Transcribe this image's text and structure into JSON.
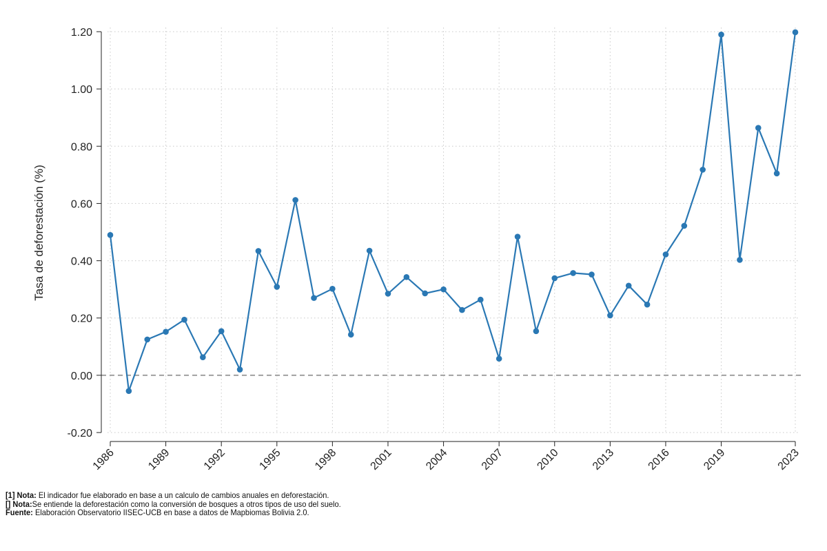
{
  "chart_data": {
    "type": "line",
    "ylabel": "Tasa de deforestación (%)",
    "xlabel": "",
    "title": "",
    "ylim": [
      -0.2,
      1.2
    ],
    "xlim": [
      1986,
      2023
    ],
    "y_ticks": [
      -0.2,
      0.0,
      0.2,
      0.4,
      0.6,
      0.8,
      1.0,
      1.2
    ],
    "y_tick_labels": [
      "-0.20",
      "0.00",
      "0.20",
      "0.40",
      "0.60",
      "0.80",
      "1.00",
      "1.20"
    ],
    "x_ticks": [
      1986,
      1989,
      1992,
      1995,
      1998,
      2001,
      2004,
      2007,
      2010,
      2013,
      2016,
      2019,
      2023
    ],
    "x_tick_labels": [
      "1986",
      "1989",
      "1992",
      "1995",
      "1998",
      "2001",
      "2004",
      "2007",
      "2010",
      "2013",
      "2016",
      "2019",
      "2023"
    ],
    "grid": true,
    "reference_line": 0.0,
    "color": "#2a78b4",
    "x": [
      1986,
      1987,
      1988,
      1989,
      1990,
      1991,
      1992,
      1993,
      1994,
      1995,
      1996,
      1997,
      1998,
      1999,
      2000,
      2001,
      2002,
      2003,
      2004,
      2005,
      2006,
      2007,
      2008,
      2009,
      2010,
      2011,
      2012,
      2013,
      2014,
      2015,
      2016,
      2017,
      2018,
      2019,
      2020,
      2021,
      2022,
      2023
    ],
    "values": [
      0.49,
      -0.055,
      0.125,
      0.152,
      0.194,
      0.063,
      0.154,
      0.02,
      0.434,
      0.309,
      0.612,
      0.27,
      0.302,
      0.142,
      0.435,
      0.285,
      0.343,
      0.286,
      0.3,
      0.228,
      0.264,
      0.058,
      0.484,
      0.154,
      0.339,
      0.357,
      0.352,
      0.209,
      0.313,
      0.247,
      0.422,
      0.522,
      0.718,
      1.19,
      0.403,
      0.864,
      0.705,
      1.198
    ]
  },
  "notes": {
    "note1_label": "[1] Nota:",
    "note1_text": " El indicador fue elaborado en base a un calculo de cambios anuales en deforestación.",
    "note2_label": "[] Nota:",
    "note2_text": "Se entiende la deforestación como la conversión de bosques a otros tipos de uso del suelo.",
    "source_label": "Fuente:",
    "source_text": " Elaboración Observatorio IISEC-UCB en base a datos de Mapbiomas Bolivia 2.0."
  }
}
